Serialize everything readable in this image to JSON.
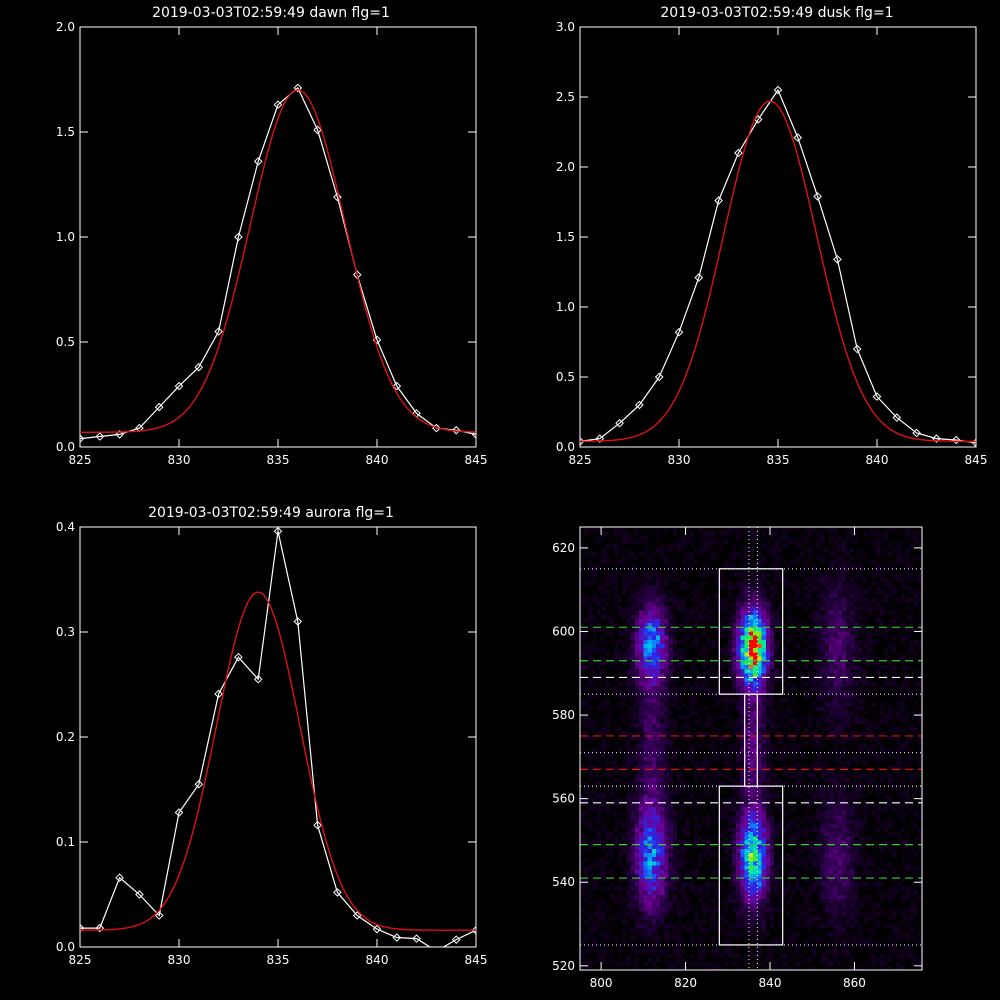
{
  "chart_data": [
    {
      "id": "dawn",
      "type": "line",
      "title": "2019-03-03T02:59:49 dawn flg=1",
      "xlim": [
        825,
        845
      ],
      "ylim": [
        0,
        2.0
      ],
      "xticks": [
        825,
        830,
        835,
        840,
        845
      ],
      "xtick_labels": [
        "825",
        "830",
        "835",
        "840",
        "845"
      ],
      "yticks": [
        0,
        0.5,
        1.0,
        1.5,
        2.0
      ],
      "ytick_labels": [
        "0.0",
        "0.5",
        "1.0",
        "1.5",
        "2.0"
      ],
      "series": [
        {
          "kind": "data",
          "color": "#ffffff",
          "marker": "diamond",
          "x": [
            825,
            826,
            827,
            828,
            829,
            830,
            831,
            832,
            833,
            834,
            835,
            836,
            837,
            838,
            839,
            840,
            841,
            842,
            843,
            844,
            845
          ],
          "y": [
            0.04,
            0.05,
            0.06,
            0.09,
            0.19,
            0.29,
            0.38,
            0.55,
            1.0,
            1.36,
            1.63,
            1.71,
            1.51,
            1.19,
            0.82,
            0.51,
            0.29,
            0.16,
            0.09,
            0.08,
            0.06
          ]
        },
        {
          "kind": "fit",
          "color": "#dd1111",
          "model": "gaussian",
          "amplitude": 1.63,
          "center": 836.0,
          "sigma": 2.4,
          "offset": 0.07
        }
      ]
    },
    {
      "id": "dusk",
      "type": "line",
      "title": "2019-03-03T02:59:49 dusk flg=1",
      "xlim": [
        825,
        845
      ],
      "ylim": [
        0,
        3.0
      ],
      "xticks": [
        825,
        830,
        835,
        840,
        845
      ],
      "xtick_labels": [
        "825",
        "830",
        "835",
        "840",
        "845"
      ],
      "yticks": [
        0,
        0.5,
        1.0,
        1.5,
        2.0,
        2.5,
        3.0
      ],
      "ytick_labels": [
        "0.0",
        "0.5",
        "1.0",
        "1.5",
        "2.0",
        "2.5",
        "3.0"
      ],
      "series": [
        {
          "kind": "data",
          "color": "#ffffff",
          "marker": "diamond",
          "x": [
            825,
            826,
            827,
            828,
            829,
            830,
            831,
            832,
            833,
            834,
            835,
            836,
            837,
            838,
            839,
            840,
            841,
            842,
            843,
            844,
            845
          ],
          "y": [
            0.04,
            0.06,
            0.17,
            0.3,
            0.5,
            0.82,
            1.21,
            1.76,
            2.1,
            2.34,
            2.55,
            2.21,
            1.79,
            1.34,
            0.7,
            0.36,
            0.21,
            0.1,
            0.06,
            0.05,
            0.03
          ]
        },
        {
          "kind": "fit",
          "color": "#dd1111",
          "model": "gaussian",
          "amplitude": 2.43,
          "center": 834.6,
          "sigma": 2.35,
          "offset": 0.04
        }
      ]
    },
    {
      "id": "aurora",
      "type": "line",
      "title": "2019-03-03T02:59:49 aurora flg=1",
      "xlim": [
        825,
        845
      ],
      "ylim": [
        0,
        0.4
      ],
      "xticks": [
        825,
        830,
        835,
        840,
        845
      ],
      "xtick_labels": [
        "825",
        "830",
        "835",
        "840",
        "845"
      ],
      "yticks": [
        0,
        0.1,
        0.2,
        0.3,
        0.4
      ],
      "ytick_labels": [
        "0.0",
        "0.1",
        "0.2",
        "0.3",
        "0.4"
      ],
      "series": [
        {
          "kind": "data",
          "color": "#ffffff",
          "marker": "diamond",
          "x": [
            825,
            826,
            827,
            828,
            829,
            830,
            831,
            832,
            833,
            834,
            835,
            836,
            837,
            838,
            839,
            840,
            841,
            842,
            843,
            844,
            845
          ],
          "y": [
            0.018,
            0.018,
            0.066,
            0.05,
            0.03,
            0.128,
            0.155,
            0.241,
            0.276,
            0.255,
            0.396,
            0.31,
            0.116,
            0.052,
            0.03,
            0.017,
            0.009,
            0.008,
            -0.004,
            0.007,
            0.016
          ]
        },
        {
          "kind": "fit",
          "color": "#dd1111",
          "model": "gaussian",
          "amplitude": 0.322,
          "center": 834.0,
          "sigma": 2.1,
          "offset": 0.016
        }
      ]
    },
    {
      "id": "image",
      "type": "heatmap",
      "title": "",
      "xlim": [
        795,
        876
      ],
      "ylim": [
        519,
        625
      ],
      "xticks": [
        800,
        820,
        840,
        860
      ],
      "xtick_labels": [
        "800",
        "820",
        "840",
        "860"
      ],
      "yticks": [
        520,
        540,
        560,
        580,
        600,
        620
      ],
      "ytick_labels": [
        "520",
        "540",
        "560",
        "580",
        "600",
        "620"
      ],
      "colormap": "rainbow",
      "blobs": [
        {
          "x": 836,
          "y": 596,
          "sx": 2.2,
          "sy": 6,
          "amp": 1.0
        },
        {
          "x": 836,
          "y": 546,
          "sx": 2.2,
          "sy": 7,
          "amp": 0.65
        },
        {
          "x": 836,
          "y": 572,
          "sx": 1.8,
          "sy": 9,
          "amp": 0.18
        },
        {
          "x": 812,
          "y": 597,
          "sx": 2.4,
          "sy": 6,
          "amp": 0.45
        },
        {
          "x": 812,
          "y": 546,
          "sx": 2.6,
          "sy": 8,
          "amp": 0.42
        },
        {
          "x": 812,
          "y": 572,
          "sx": 2.4,
          "sy": 16,
          "amp": 0.12
        },
        {
          "x": 856,
          "y": 596,
          "sx": 2.8,
          "sy": 10,
          "amp": 0.14
        },
        {
          "x": 856,
          "y": 546,
          "sx": 2.8,
          "sy": 10,
          "amp": 0.14
        }
      ],
      "boxes": [
        {
          "x0": 828,
          "x1": 843,
          "y0": 585,
          "y1": 615
        },
        {
          "x0": 828,
          "x1": 843,
          "y0": 525,
          "y1": 563
        },
        {
          "x0": 834,
          "x1": 837,
          "y0": 563,
          "y1": 585
        }
      ],
      "hlines": [
        {
          "y": 615,
          "color": "#e6e6e6",
          "style": "dotted"
        },
        {
          "y": 601,
          "color": "#33cc33",
          "style": "dashed"
        },
        {
          "y": 593,
          "color": "#33cc33",
          "style": "dashed"
        },
        {
          "y": 589,
          "color": "#ffffff",
          "style": "dashed"
        },
        {
          "y": 585,
          "color": "#e6e6e6",
          "style": "dotted"
        },
        {
          "y": 575,
          "color": "#dd1111",
          "style": "dashed"
        },
        {
          "y": 571,
          "color": "#e6e6e6",
          "style": "dotted"
        },
        {
          "y": 567,
          "color": "#dd1111",
          "style": "dashed"
        },
        {
          "y": 563,
          "color": "#e6e6e6",
          "style": "dotted"
        },
        {
          "y": 559,
          "color": "#ffffff",
          "style": "dashed"
        },
        {
          "y": 549,
          "color": "#33cc33",
          "style": "dashed"
        },
        {
          "y": 541,
          "color": "#33cc33",
          "style": "dashed"
        },
        {
          "y": 525,
          "color": "#e6e6e6",
          "style": "dotted"
        }
      ],
      "vlines": [
        {
          "x": 835,
          "color": "#ffffff",
          "style": "dotted"
        },
        {
          "x": 837,
          "color": "#ffffff",
          "style": "dotted"
        }
      ]
    }
  ]
}
